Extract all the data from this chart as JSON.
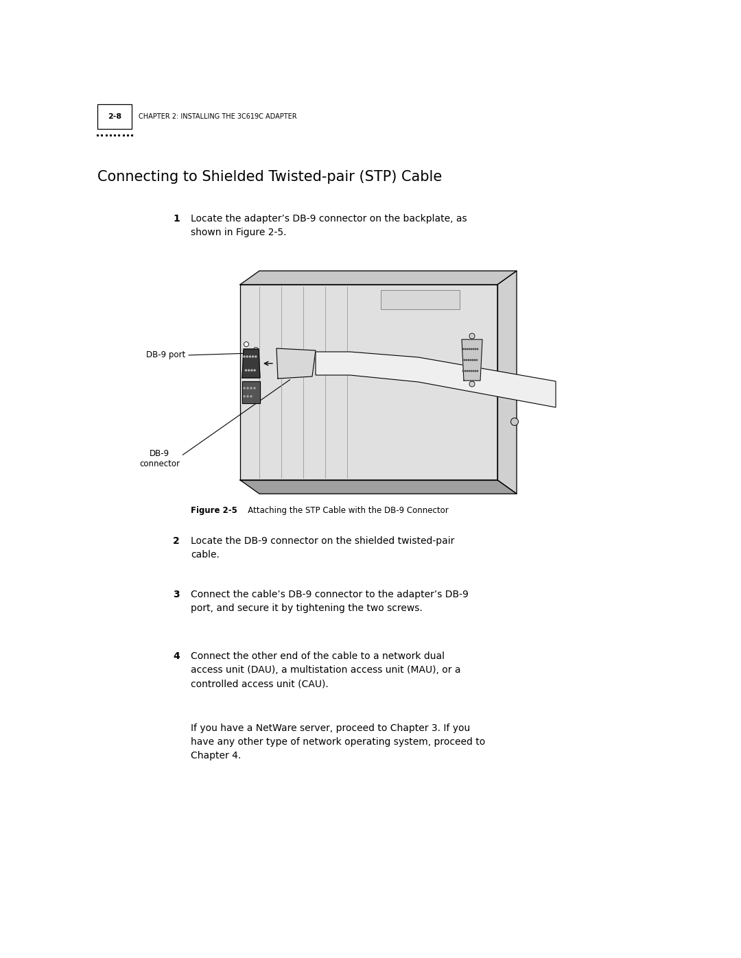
{
  "bg_color": "#ffffff",
  "page_width": 10.8,
  "page_height": 13.97,
  "header_page_num": "2-8",
  "header_chapter_text": "CHAPTER 2: INSTALLING THE 3C619C ADAPTER",
  "section_title": "Connecting to Shielded Twisted-pair (STP) Cable",
  "step1_num": "1",
  "step1_text": "Locate the adapter’s DB-9 connector on the backplate, as\nshown in Figure 2-5.",
  "step2_num": "2",
  "step2_text": "Locate the DB-9 connector on the shielded twisted-pair\ncable.",
  "step3_num": "3",
  "step3_text": "Connect the cable’s DB-9 connector to the adapter’s DB-9\nport, and secure it by tightening the two screws.",
  "step4_num": "4",
  "step4_text": "Connect the other end of the cable to a network dual\naccess unit (DAU), a multistation access unit (MAU), or a\ncontrolled access unit (CAU).",
  "step4b_text": "If you have a NetWare server, proceed to Chapter 3. If you\nhave any other type of network operating system, proceed to\nChapter 4.",
  "figure_caption_bold": "Figure 2-5",
  "figure_caption_rest": "   Attaching the STP Cable with the DB-9 Connector",
  "label_db9_port": "DB-9 port",
  "label_db9_connector": "DB-9\nconnector",
  "dots_count": 9
}
